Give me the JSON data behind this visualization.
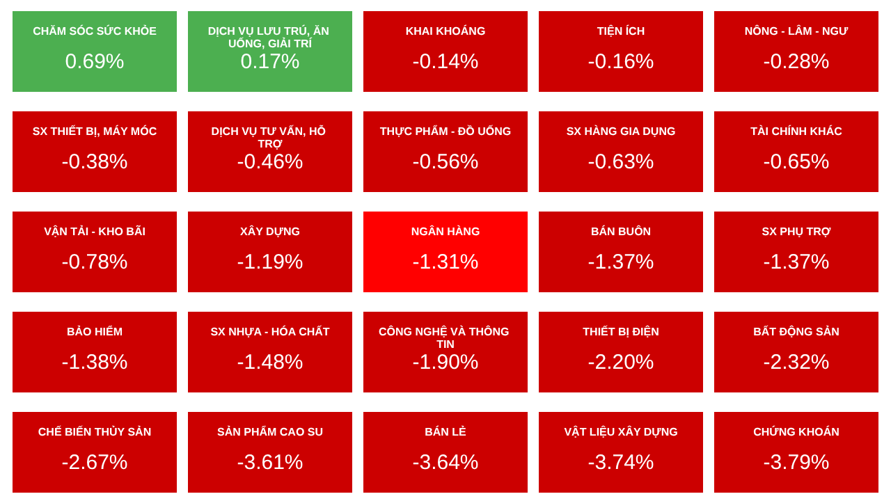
{
  "chart_data": {
    "type": "other",
    "categories": [
      "CHĂM SÓC SỨC KHỎE",
      "DỊCH VỤ LƯU TRÚ, ĂN UỐNG, GIẢI TRÍ",
      "KHAI KHOÁNG",
      "TIỆN ÍCH",
      "NÔNG - LÂM - NGƯ",
      "SX THIẾT BỊ, MÁY MÓC",
      "DỊCH VỤ TƯ VẤN, HỖ TRỢ",
      "THỰC PHẨM - ĐỒ UỐNG",
      "SX HÀNG GIA DỤNG",
      "TÀI CHÍNH KHÁC",
      "VẬN TẢI - KHO BÃI",
      "XÂY DỰNG",
      "NGÂN HÀNG",
      "BÁN BUÔN",
      "SX PHỤ TRỢ",
      "BẢO HIỂM",
      "SX NHỰA - HÓA CHẤT",
      "CÔNG NGHỆ VÀ THÔNG TIN",
      "THIẾT BỊ ĐIỆN",
      "BẤT ĐỘNG SẢN",
      "CHẾ BIẾN THỦY SẢN",
      "SẢN PHẨM CAO SU",
      "BÁN LẺ",
      "VẬT LIỆU XÂY DỰNG",
      "CHỨNG KHOÁN"
    ],
    "values": [
      0.69,
      0.17,
      -0.14,
      -0.16,
      -0.28,
      -0.38,
      -0.46,
      -0.56,
      -0.63,
      -0.65,
      -0.78,
      -1.19,
      -1.31,
      -1.37,
      -1.37,
      -1.38,
      -1.48,
      -1.9,
      -2.2,
      -2.32,
      -2.67,
      -3.61,
      -3.64,
      -3.74,
      -3.79
    ],
    "value_labels": [
      "0.69%",
      "0.17%",
      "-0.14%",
      "-0.16%",
      "-0.28%",
      "-0.38%",
      "-0.46%",
      "-0.56%",
      "-0.63%",
      "-0.65%",
      "-0.78%",
      "-1.19%",
      "-1.31%",
      "-1.37%",
      "-1.37%",
      "-1.38%",
      "-1.48%",
      "-1.90%",
      "-2.20%",
      "-2.32%",
      "-2.67%",
      "-3.61%",
      "-3.64%",
      "-3.74%",
      "-3.79%"
    ],
    "colors": [
      "#4caf50",
      "#4caf50",
      "#cc0000",
      "#cc0000",
      "#cc0000",
      "#cc0000",
      "#cc0000",
      "#cc0000",
      "#cc0000",
      "#cc0000",
      "#cc0000",
      "#cc0000",
      "#ff0000",
      "#cc0000",
      "#cc0000",
      "#cc0000",
      "#cc0000",
      "#cc0000",
      "#cc0000",
      "#cc0000",
      "#cc0000",
      "#cc0000",
      "#cc0000",
      "#cc0000",
      "#cc0000"
    ]
  }
}
